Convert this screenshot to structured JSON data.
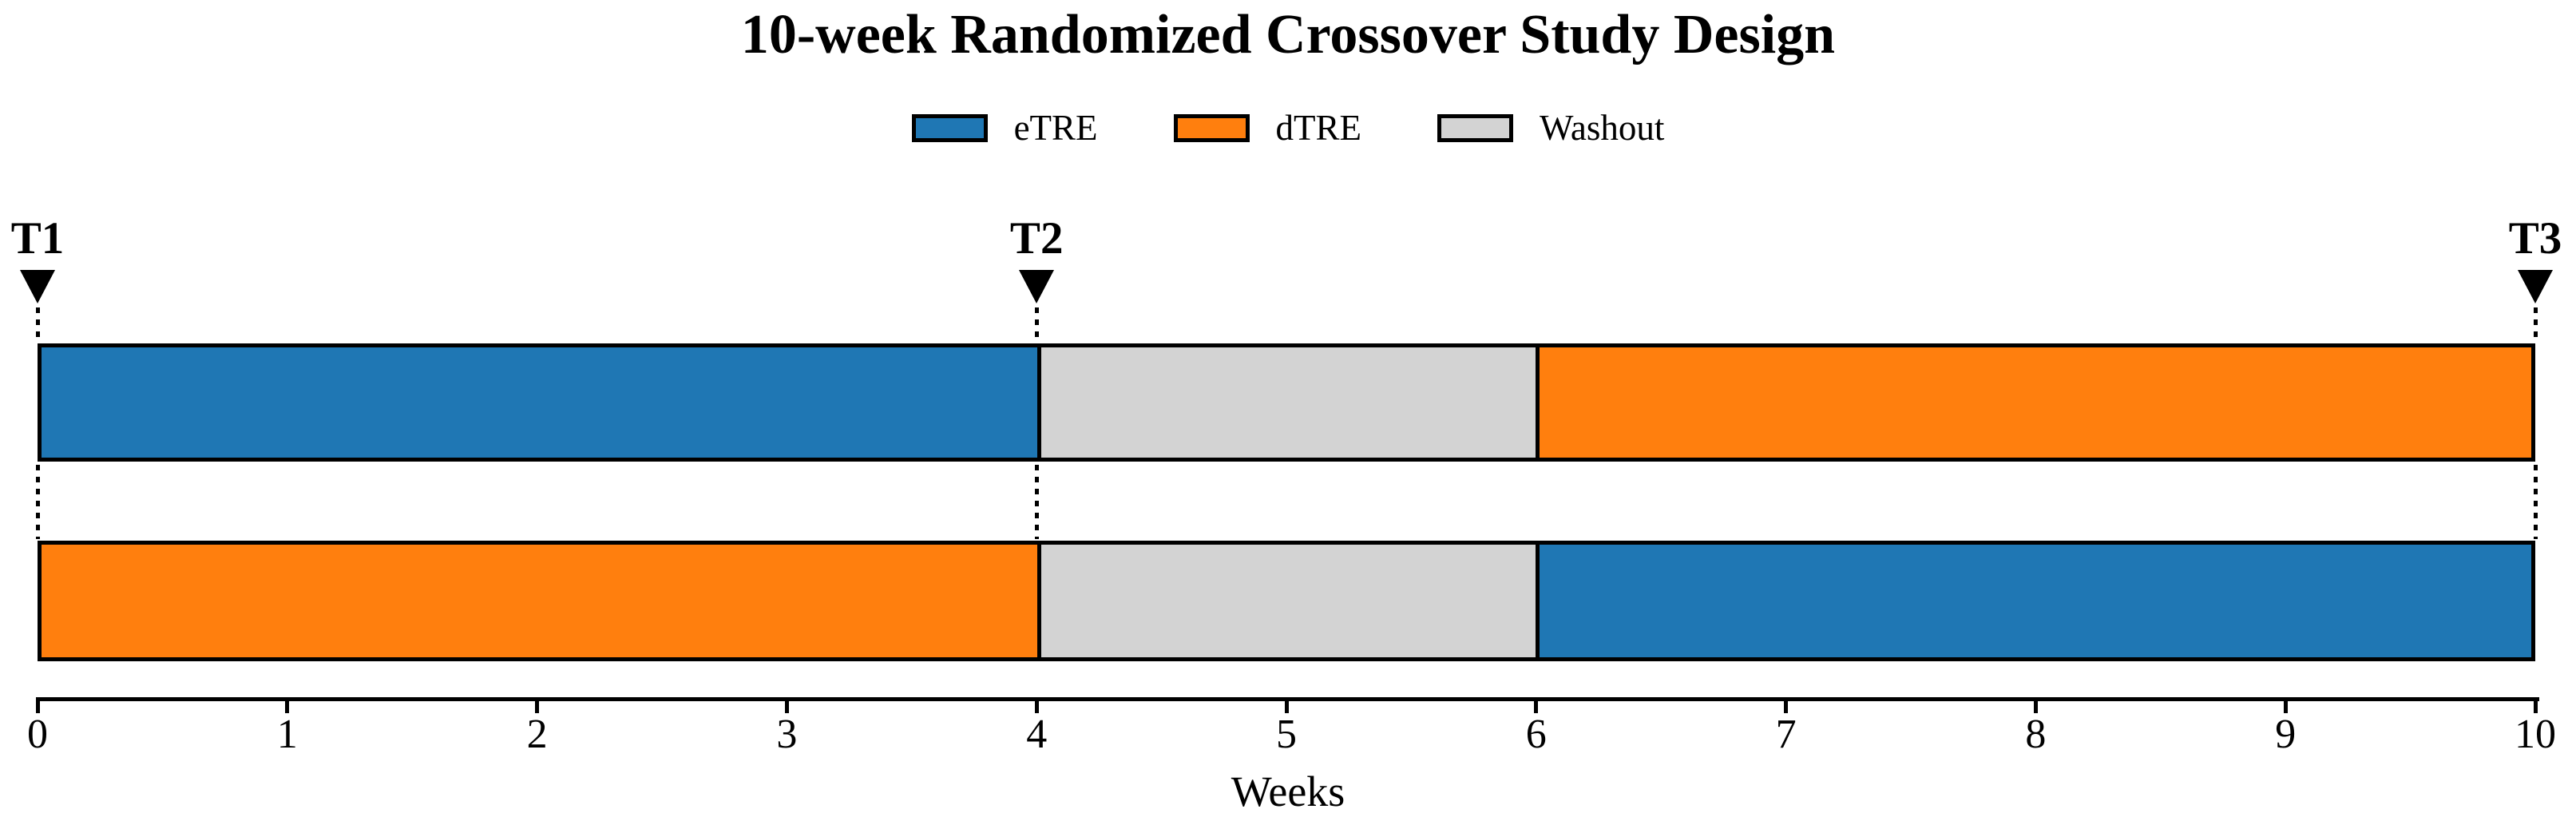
{
  "chart_data": {
    "type": "bar",
    "variant": "horizontal-timeline-crossover",
    "title": "10-week Randomized Crossover Study Design",
    "xlabel": "Weeks",
    "xlim": [
      0,
      10
    ],
    "xticks": [
      0,
      1,
      2,
      3,
      4,
      5,
      6,
      7,
      8,
      9,
      10
    ],
    "grid": false,
    "legend_position": "top-center",
    "legend": [
      {
        "label": "eTRE",
        "color": "#1f77b4"
      },
      {
        "label": "dTRE",
        "color": "#ff7f0e"
      },
      {
        "label": "Washout",
        "color": "#d3d3d3"
      }
    ],
    "timepoint_markers": [
      {
        "label": "T1",
        "week": 0
      },
      {
        "label": "T2",
        "week": 4
      },
      {
        "label": "T3",
        "week": 10
      }
    ],
    "rows": [
      {
        "segments": [
          {
            "phase": "eTRE",
            "start_week": 0,
            "end_week": 4
          },
          {
            "phase": "Washout",
            "start_week": 4,
            "end_week": 6
          },
          {
            "phase": "dTRE",
            "start_week": 6,
            "end_week": 10
          }
        ]
      },
      {
        "segments": [
          {
            "phase": "dTRE",
            "start_week": 0,
            "end_week": 4
          },
          {
            "phase": "Washout",
            "start_week": 4,
            "end_week": 6
          },
          {
            "phase": "eTRE",
            "start_week": 6,
            "end_week": 10
          }
        ]
      }
    ],
    "colors": {
      "marker_triangle": "#000000",
      "outline": "#000000",
      "background": "#ffffff"
    }
  }
}
